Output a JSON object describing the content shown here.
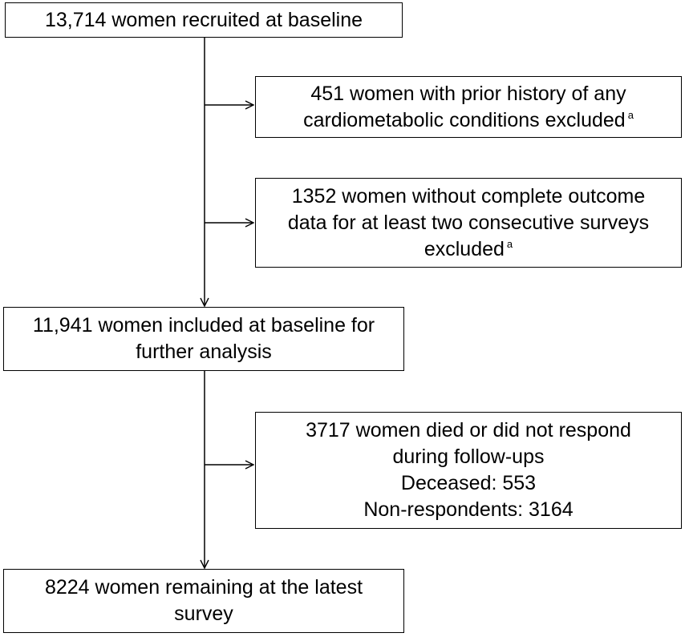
{
  "boxes": {
    "recruited": {
      "lines": [
        "13,714 women recruited at baseline"
      ]
    },
    "excluded_prior": {
      "lines": [
        "451 women with prior history of any",
        "cardiometabolic conditions excluded"
      ],
      "footnote": "a"
    },
    "excluded_outcome": {
      "lines": [
        "1352 women without complete outcome",
        "data for at least two consecutive surveys",
        "excluded"
      ],
      "footnote": "a"
    },
    "included": {
      "lines": [
        "11,941 women included at baseline for",
        "further analysis"
      ]
    },
    "lost": {
      "lines": [
        "3717 women died or did not respond",
        "during follow-ups",
        "Deceased: 553",
        "Non-respondents: 3164"
      ]
    },
    "remaining": {
      "lines": [
        "8224 women remaining at the latest",
        "survey"
      ]
    }
  },
  "colors": {
    "stroke": "#000000",
    "background": "#ffffff"
  }
}
